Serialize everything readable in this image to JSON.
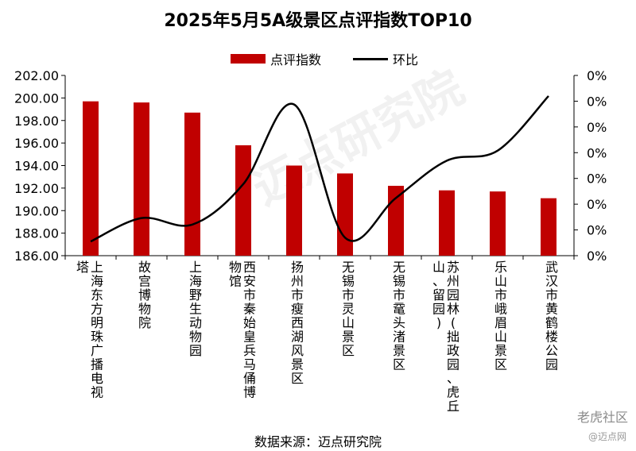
{
  "chart_data": {
    "type": "bar",
    "title": "2025年5月5A级景区点评指数TOP10",
    "categories": [
      "上海东方明珠广播电视塔",
      "故宫博物院",
      "上海野生动物园",
      "西安市秦始皇兵马俑博物馆",
      "扬州市瘦西湖风景区",
      "无锡市灵山景区",
      "无锡市鼋头渚景区",
      "苏州园林(拙政园、虎丘山、留园)",
      "乐山市峨眉山景区",
      "武汉市黄鹤楼公园"
    ],
    "category_lines": [
      [
        "上海东方明珠广播电视",
        "塔"
      ],
      [
        "故宫博物院"
      ],
      [
        "上海野生动物园"
      ],
      [
        "西安市秦始皇兵马俑博",
        "物馆"
      ],
      [
        "扬州市瘦西湖风景区"
      ],
      [
        "无锡市灵山景区"
      ],
      [
        "无锡市鼋头渚景区"
      ],
      [
        "苏州园林(拙政园、虎丘",
        "山、留园)"
      ],
      [
        "乐山市峨眉山景区"
      ],
      [
        "武汉市黄鹤楼公园"
      ]
    ],
    "series": [
      {
        "name": "点评指数",
        "type": "bar",
        "color": "#C00000",
        "values": [
          199.7,
          199.6,
          198.7,
          195.8,
          194.0,
          193.3,
          192.2,
          191.8,
          191.7,
          191.1
        ]
      },
      {
        "name": "环比",
        "type": "line",
        "color": "#000000",
        "values": [
          0.05,
          0.96,
          0.71,
          2.28,
          5.37,
          0.2,
          1.74,
          3.19,
          3.58,
          5.7
        ]
      }
    ],
    "ylim": [
      186.0,
      202.0
    ],
    "yticks": [
      "186.00",
      "188.00",
      "190.00",
      "192.00",
      "194.00",
      "196.00",
      "198.00",
      "200.00",
      "202.00"
    ],
    "y2ticks": [
      "0%",
      "0%",
      "0%",
      "0%",
      "0%",
      "0%",
      "0%",
      "0%"
    ],
    "y2lim": [
      -0.5,
      6.5
    ],
    "legend_position": "top-center",
    "grid": false
  },
  "legend": {
    "bar_label": "点评指数",
    "line_label": "环比"
  },
  "source_text": "数据来源：迈点研究院",
  "watermarks": {
    "background": "迈点研究院",
    "site": "老虎社区",
    "net": "@迈点网"
  }
}
